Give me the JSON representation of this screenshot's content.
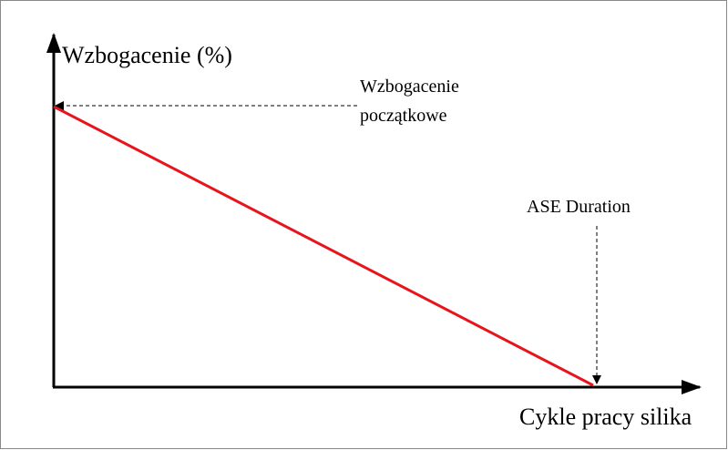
{
  "y_axis_label": "Wzbogacenie (%)",
  "x_axis_label": "Cykle pracy silika",
  "annotations": {
    "start": [
      "Wzbogacenie",
      "początkowe"
    ],
    "end": "ASE Duration"
  }
}
